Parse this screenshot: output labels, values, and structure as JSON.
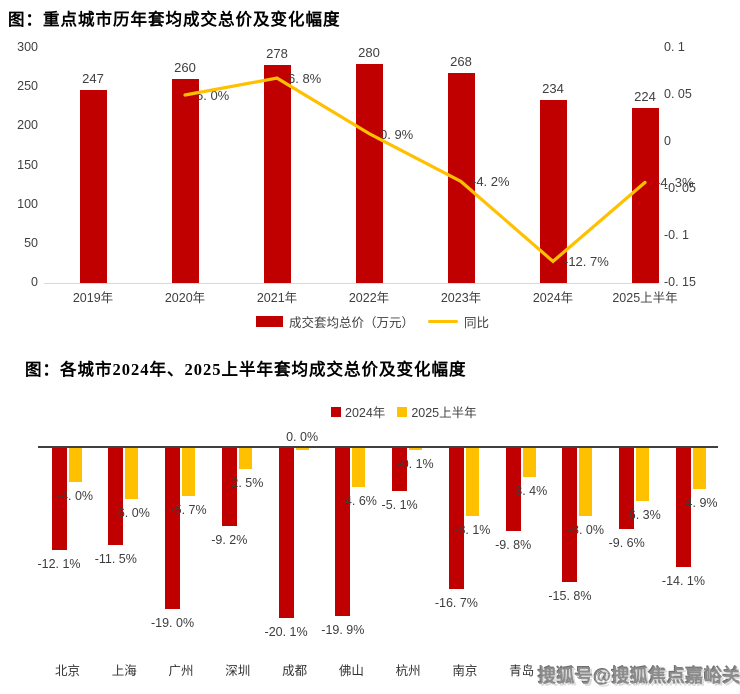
{
  "watermark": {
    "text": "搜狐号@搜狐焦点嘉峪关站"
  },
  "colors": {
    "bar_red": "#c00000",
    "line_yellow": "#ffc000",
    "axis_dark": "#404040",
    "axis_light": "#d9d9d9"
  },
  "chart_data": [
    {
      "id": "avg-price-by-year",
      "type": "bar+line",
      "title": "图：重点城市历年套均成交总价及变化幅度",
      "categories": [
        "2019年",
        "2020年",
        "2021年",
        "2022年",
        "2023年",
        "2024年",
        "2025上半年"
      ],
      "bar_series": {
        "name": "成交套均总价（万元）",
        "color": "#c00000",
        "values": [
          247,
          260,
          278,
          280,
          268,
          234,
          224
        ],
        "labels": [
          "247",
          "260",
          "278",
          "280",
          "268",
          "234",
          "224"
        ]
      },
      "line_series": {
        "name": "同比",
        "color": "#ffc000",
        "unit": "%",
        "values": [
          null,
          5.0,
          6.8,
          0.9,
          -4.2,
          -12.7,
          -4.3
        ],
        "labels": [
          null,
          "5. 0%",
          "6. 8%",
          "0. 9%",
          "-4. 2%",
          "-12. 7%",
          "-4. 3%"
        ]
      },
      "left_axis": {
        "min": 0,
        "max": 300,
        "ticks": [
          "300",
          "250",
          "200",
          "150",
          "100",
          "50",
          "0"
        ]
      },
      "right_axis": {
        "min": -0.15,
        "max": 0.1,
        "ticks": [
          "0. 1",
          "0. 05",
          "0",
          "-0. 05",
          "-0. 1",
          "-0. 15"
        ]
      },
      "legend_position": "bottom",
      "grid": "off"
    },
    {
      "id": "city-avg-price-change",
      "type": "bar",
      "title": "图：各城市2024年、2025上半年套均成交总价及变化幅度",
      "categories": [
        "北京",
        "上海",
        "广州",
        "深圳",
        "成都",
        "佛山",
        "杭州",
        "南京",
        "青岛",
        "",
        "",
        ""
      ],
      "series": [
        {
          "name": "2024年",
          "color": "#c00000",
          "unit": "%",
          "values": [
            -12.1,
            -11.5,
            -19.0,
            -9.2,
            -20.1,
            -19.9,
            -5.1,
            -16.7,
            -9.8,
            -15.8,
            -9.6,
            -14.1
          ],
          "labels": [
            "-12. 1%",
            "-11. 5%",
            "-19. 0%",
            "-9. 2%",
            "-20. 1%",
            "-19. 9%",
            "-5. 1%",
            "-16. 7%",
            "-9. 8%",
            "-15. 8%",
            "-9. 6%",
            "-14. 1%"
          ]
        },
        {
          "name": "2025上半年",
          "color": "#ffc000",
          "unit": "%",
          "values": [
            -4.0,
            -6.0,
            -5.7,
            -2.5,
            0.0,
            -4.6,
            -0.1,
            -8.1,
            -3.4,
            -8.0,
            -6.3,
            -4.9
          ],
          "labels": [
            "-4. 0%",
            "-6. 0%",
            "-5. 7%",
            "-2. 5%",
            "0. 0%",
            "-4. 6%",
            "-0. 1%",
            "-8. 1%",
            "-3. 4%",
            "-8. 0%",
            "-6. 3%",
            "-4. 9%"
          ]
        }
      ],
      "legend_position": "top",
      "grid": "off"
    }
  ]
}
